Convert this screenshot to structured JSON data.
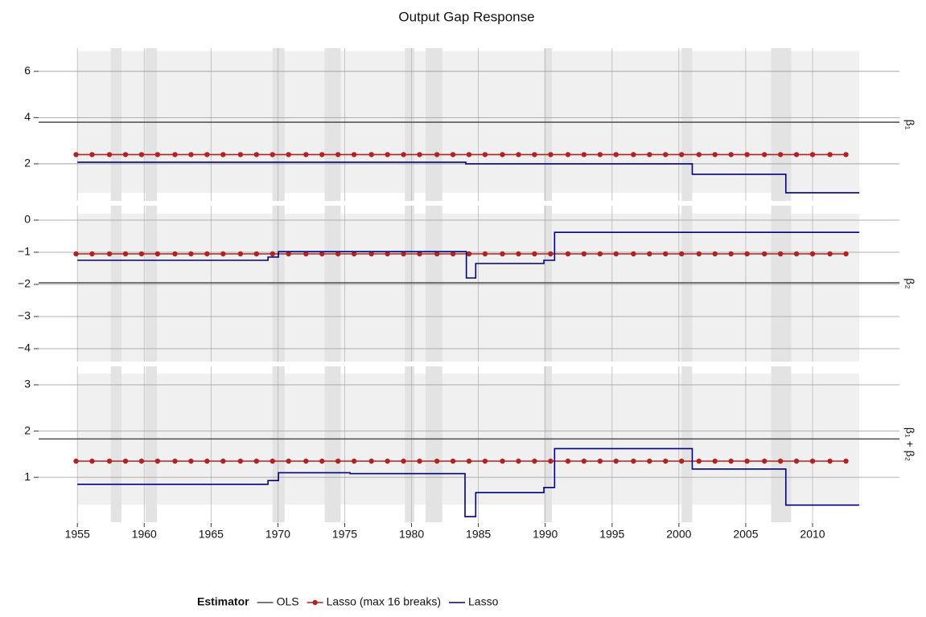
{
  "chart_data": {
    "type": "line",
    "title": "Output Gap Response",
    "xlim": [
      1952.1,
      2016.5
    ],
    "xticks": [
      1955,
      1960,
      1965,
      1970,
      1975,
      1980,
      1985,
      1990,
      1995,
      2000,
      2005,
      2010
    ],
    "grid": true,
    "legend_title": "Estimator",
    "legend_position": "bottom",
    "data_span": [
      1955,
      2013.5
    ],
    "shaded_periods": [
      [
        1957.5,
        1958.3
      ],
      [
        1960.1,
        1960.95
      ],
      [
        1969.6,
        1970.5
      ],
      [
        1973.5,
        1974.7
      ],
      [
        1979.5,
        1980.2
      ],
      [
        1981.05,
        1982.3
      ],
      [
        1989.9,
        1990.5
      ],
      [
        2000.2,
        2001.0
      ],
      [
        2006.9,
        2008.4
      ]
    ],
    "shade_color": "#e3e3e3",
    "band_color": "#f0f0f0",
    "panels": [
      {
        "label": "β₁",
        "ylim": [
          0.4,
          7.0
        ],
        "yticks": [
          2,
          4,
          6
        ],
        "band": [
          0.75,
          6.87
        ],
        "series": [
          {
            "name": "OLS",
            "color": "#4d4d4d",
            "yintercept": 3.8
          },
          {
            "name": "Lasso (max 16 breaks)",
            "color": "#b22222",
            "markers": true,
            "x": [
              1954.9,
              1956.1,
              1957.4,
              1958.6,
              1959.8,
              1961.0,
              1962.3,
              1963.5,
              1964.7,
              1965.9,
              1967.2,
              1968.4,
              1969.6,
              1970.8,
              1972.1,
              1973.3,
              1974.5,
              1975.7,
              1977.0,
              1978.2,
              1979.4,
              1980.6,
              1981.9,
              1983.1,
              1984.3,
              1985.5,
              1986.8,
              1988.0,
              1989.2,
              1990.4,
              1991.7,
              1992.9,
              1994.1,
              1995.3,
              1996.6,
              1997.8,
              1999.0,
              2000.2,
              2001.5,
              2002.7,
              2003.9,
              2005.1,
              2006.4,
              2007.6,
              2008.8,
              2010.0,
              2011.3,
              2012.5
            ],
            "values": [
              2.4,
              2.4,
              2.4,
              2.4,
              2.4,
              2.4,
              2.4,
              2.4,
              2.4,
              2.4,
              2.4,
              2.4,
              2.4,
              2.4,
              2.4,
              2.4,
              2.4,
              2.4,
              2.4,
              2.4,
              2.4,
              2.4,
              2.4,
              2.4,
              2.4,
              2.4,
              2.4,
              2.4,
              2.4,
              2.4,
              2.4,
              2.4,
              2.4,
              2.4,
              2.4,
              2.4,
              2.4,
              2.4,
              2.4,
              2.4,
              2.4,
              2.4,
              2.4,
              2.4,
              2.4,
              2.4,
              2.4,
              2.4
            ]
          },
          {
            "name": "Lasso",
            "color": "#000080",
            "step": "post",
            "x": [
              1955,
              1984.06,
              2001.0,
              2008.0,
              2013.5
            ],
            "values": [
              2.07,
              2.0,
              1.55,
              0.75,
              0.75
            ]
          }
        ]
      },
      {
        "label": "β₂",
        "ylim": [
          -4.4,
          0.45
        ],
        "yticks": [
          {
            "value": 0,
            "label": "0"
          },
          {
            "value": -1,
            "label": "−1"
          },
          {
            "value": -2,
            "label": "−2"
          },
          {
            "value": -3,
            "label": "−3"
          },
          {
            "value": -4,
            "label": "−4"
          }
        ],
        "band": [
          -4.4,
          0.2
        ],
        "series": [
          {
            "name": "OLS",
            "color": "#4d4d4d",
            "yintercept": -1.95
          },
          {
            "name": "Lasso (max 16 breaks)",
            "color": "#b22222",
            "markers": true,
            "x": [
              1954.9,
              1956.1,
              1957.4,
              1958.6,
              1959.8,
              1961.0,
              1962.3,
              1963.5,
              1964.7,
              1965.9,
              1967.2,
              1968.4,
              1969.6,
              1970.8,
              1972.1,
              1973.3,
              1974.5,
              1975.7,
              1977.0,
              1978.2,
              1979.4,
              1980.6,
              1981.9,
              1983.1,
              1984.3,
              1985.5,
              1986.8,
              1988.0,
              1989.2,
              1990.4,
              1991.7,
              1992.9,
              1994.1,
              1995.3,
              1996.6,
              1997.8,
              1999.0,
              2000.2,
              2001.5,
              2002.7,
              2003.9,
              2005.1,
              2006.4,
              2007.6,
              2008.8,
              2010.0,
              2011.3,
              2012.5
            ],
            "values": [
              -1.05,
              -1.05,
              -1.05,
              -1.05,
              -1.05,
              -1.05,
              -1.05,
              -1.05,
              -1.05,
              -1.05,
              -1.05,
              -1.05,
              -1.05,
              -1.05,
              -1.05,
              -1.05,
              -1.05,
              -1.05,
              -1.05,
              -1.05,
              -1.05,
              -1.05,
              -1.05,
              -1.05,
              -1.05,
              -1.05,
              -1.05,
              -1.05,
              -1.05,
              -1.05,
              -1.05,
              -1.05,
              -1.05,
              -1.05,
              -1.05,
              -1.05,
              -1.05,
              -1.05,
              -1.05,
              -1.05,
              -1.05,
              -1.05,
              -1.05,
              -1.05,
              -1.05,
              -1.05,
              -1.05,
              -1.05
            ]
          },
          {
            "name": "Lasso",
            "color": "#000080",
            "step": "post",
            "x": [
              1955,
              1969.26,
              1970.04,
              1984.1,
              1984.8,
              1989.9,
              1990.7,
              2013.5
            ],
            "values": [
              -1.25,
              -1.15,
              -0.98,
              -1.8,
              -1.35,
              -1.25,
              -0.38,
              -0.38
            ]
          }
        ]
      },
      {
        "label": "β₁ + β₂",
        "ylim": [
          0.03,
          3.4
        ],
        "yticks": [
          1,
          2,
          3
        ],
        "band": [
          0.41,
          3.24
        ],
        "series": [
          {
            "name": "OLS",
            "color": "#4d4d4d",
            "yintercept": 1.83
          },
          {
            "name": "Lasso (max 16 breaks)",
            "color": "#b22222",
            "markers": true,
            "x": [
              1954.9,
              1956.1,
              1957.4,
              1958.6,
              1959.8,
              1961.0,
              1962.3,
              1963.5,
              1964.7,
              1965.9,
              1967.2,
              1968.4,
              1969.6,
              1970.8,
              1972.1,
              1973.3,
              1974.5,
              1975.7,
              1977.0,
              1978.2,
              1979.4,
              1980.6,
              1981.9,
              1983.1,
              1984.3,
              1985.5,
              1986.8,
              1988.0,
              1989.2,
              1990.4,
              1991.7,
              1992.9,
              1994.1,
              1995.3,
              1996.6,
              1997.8,
              1999.0,
              2000.2,
              2001.5,
              2002.7,
              2003.9,
              2005.1,
              2006.4,
              2007.6,
              2008.8,
              2010.0,
              2011.3,
              2012.5
            ],
            "values": [
              1.35,
              1.35,
              1.35,
              1.35,
              1.35,
              1.35,
              1.35,
              1.35,
              1.35,
              1.35,
              1.35,
              1.35,
              1.35,
              1.35,
              1.35,
              1.35,
              1.35,
              1.35,
              1.35,
              1.35,
              1.35,
              1.35,
              1.35,
              1.35,
              1.35,
              1.35,
              1.35,
              1.35,
              1.35,
              1.35,
              1.35,
              1.35,
              1.35,
              1.35,
              1.35,
              1.35,
              1.35,
              1.35,
              1.35,
              1.35,
              1.35,
              1.35,
              1.35,
              1.35,
              1.35,
              1.35,
              1.35,
              1.35
            ]
          },
          {
            "name": "Lasso",
            "color": "#000080",
            "step": "post",
            "x": [
              1955,
              1969.26,
              1970.04,
              1975.4,
              1984.0,
              1984.8,
              1989.9,
              1990.7,
              2001.0,
              2008.0,
              2013.5
            ],
            "values": [
              0.85,
              0.93,
              1.1,
              1.08,
              0.15,
              0.67,
              0.78,
              1.62,
              1.18,
              0.4,
              0.4
            ]
          }
        ]
      }
    ]
  }
}
